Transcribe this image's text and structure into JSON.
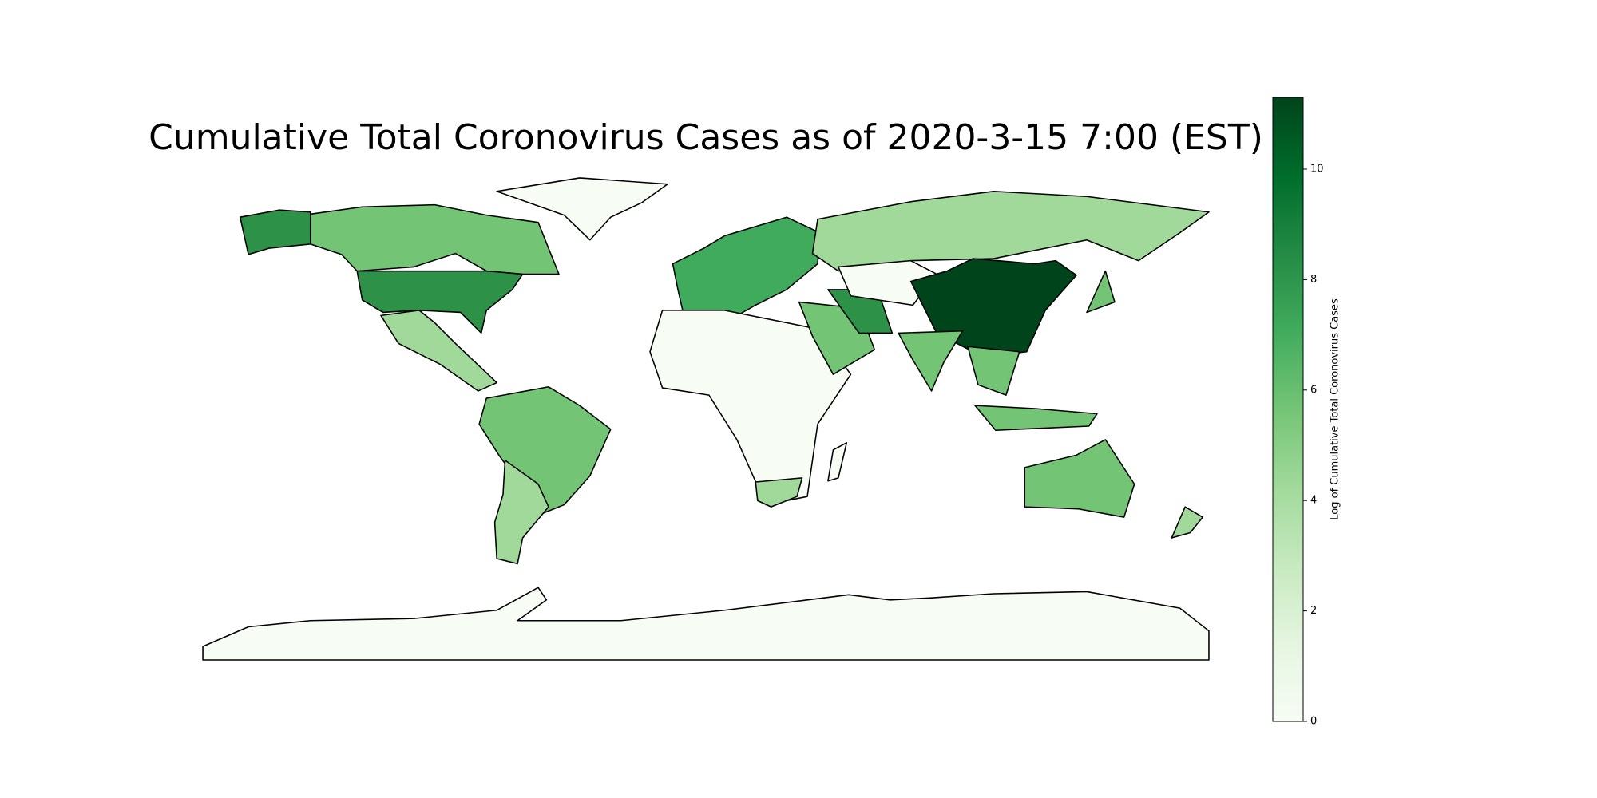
{
  "title": "Cumulative Total Coronovirus Cases as of 2020-3-15 7:00 (EST)",
  "colorbar": {
    "label": "Log of Cumulative Total Coronovirus Cases",
    "lim": [
      0,
      11.3
    ],
    "ticks": [
      0,
      2,
      4,
      6,
      8,
      10
    ]
  }
}
